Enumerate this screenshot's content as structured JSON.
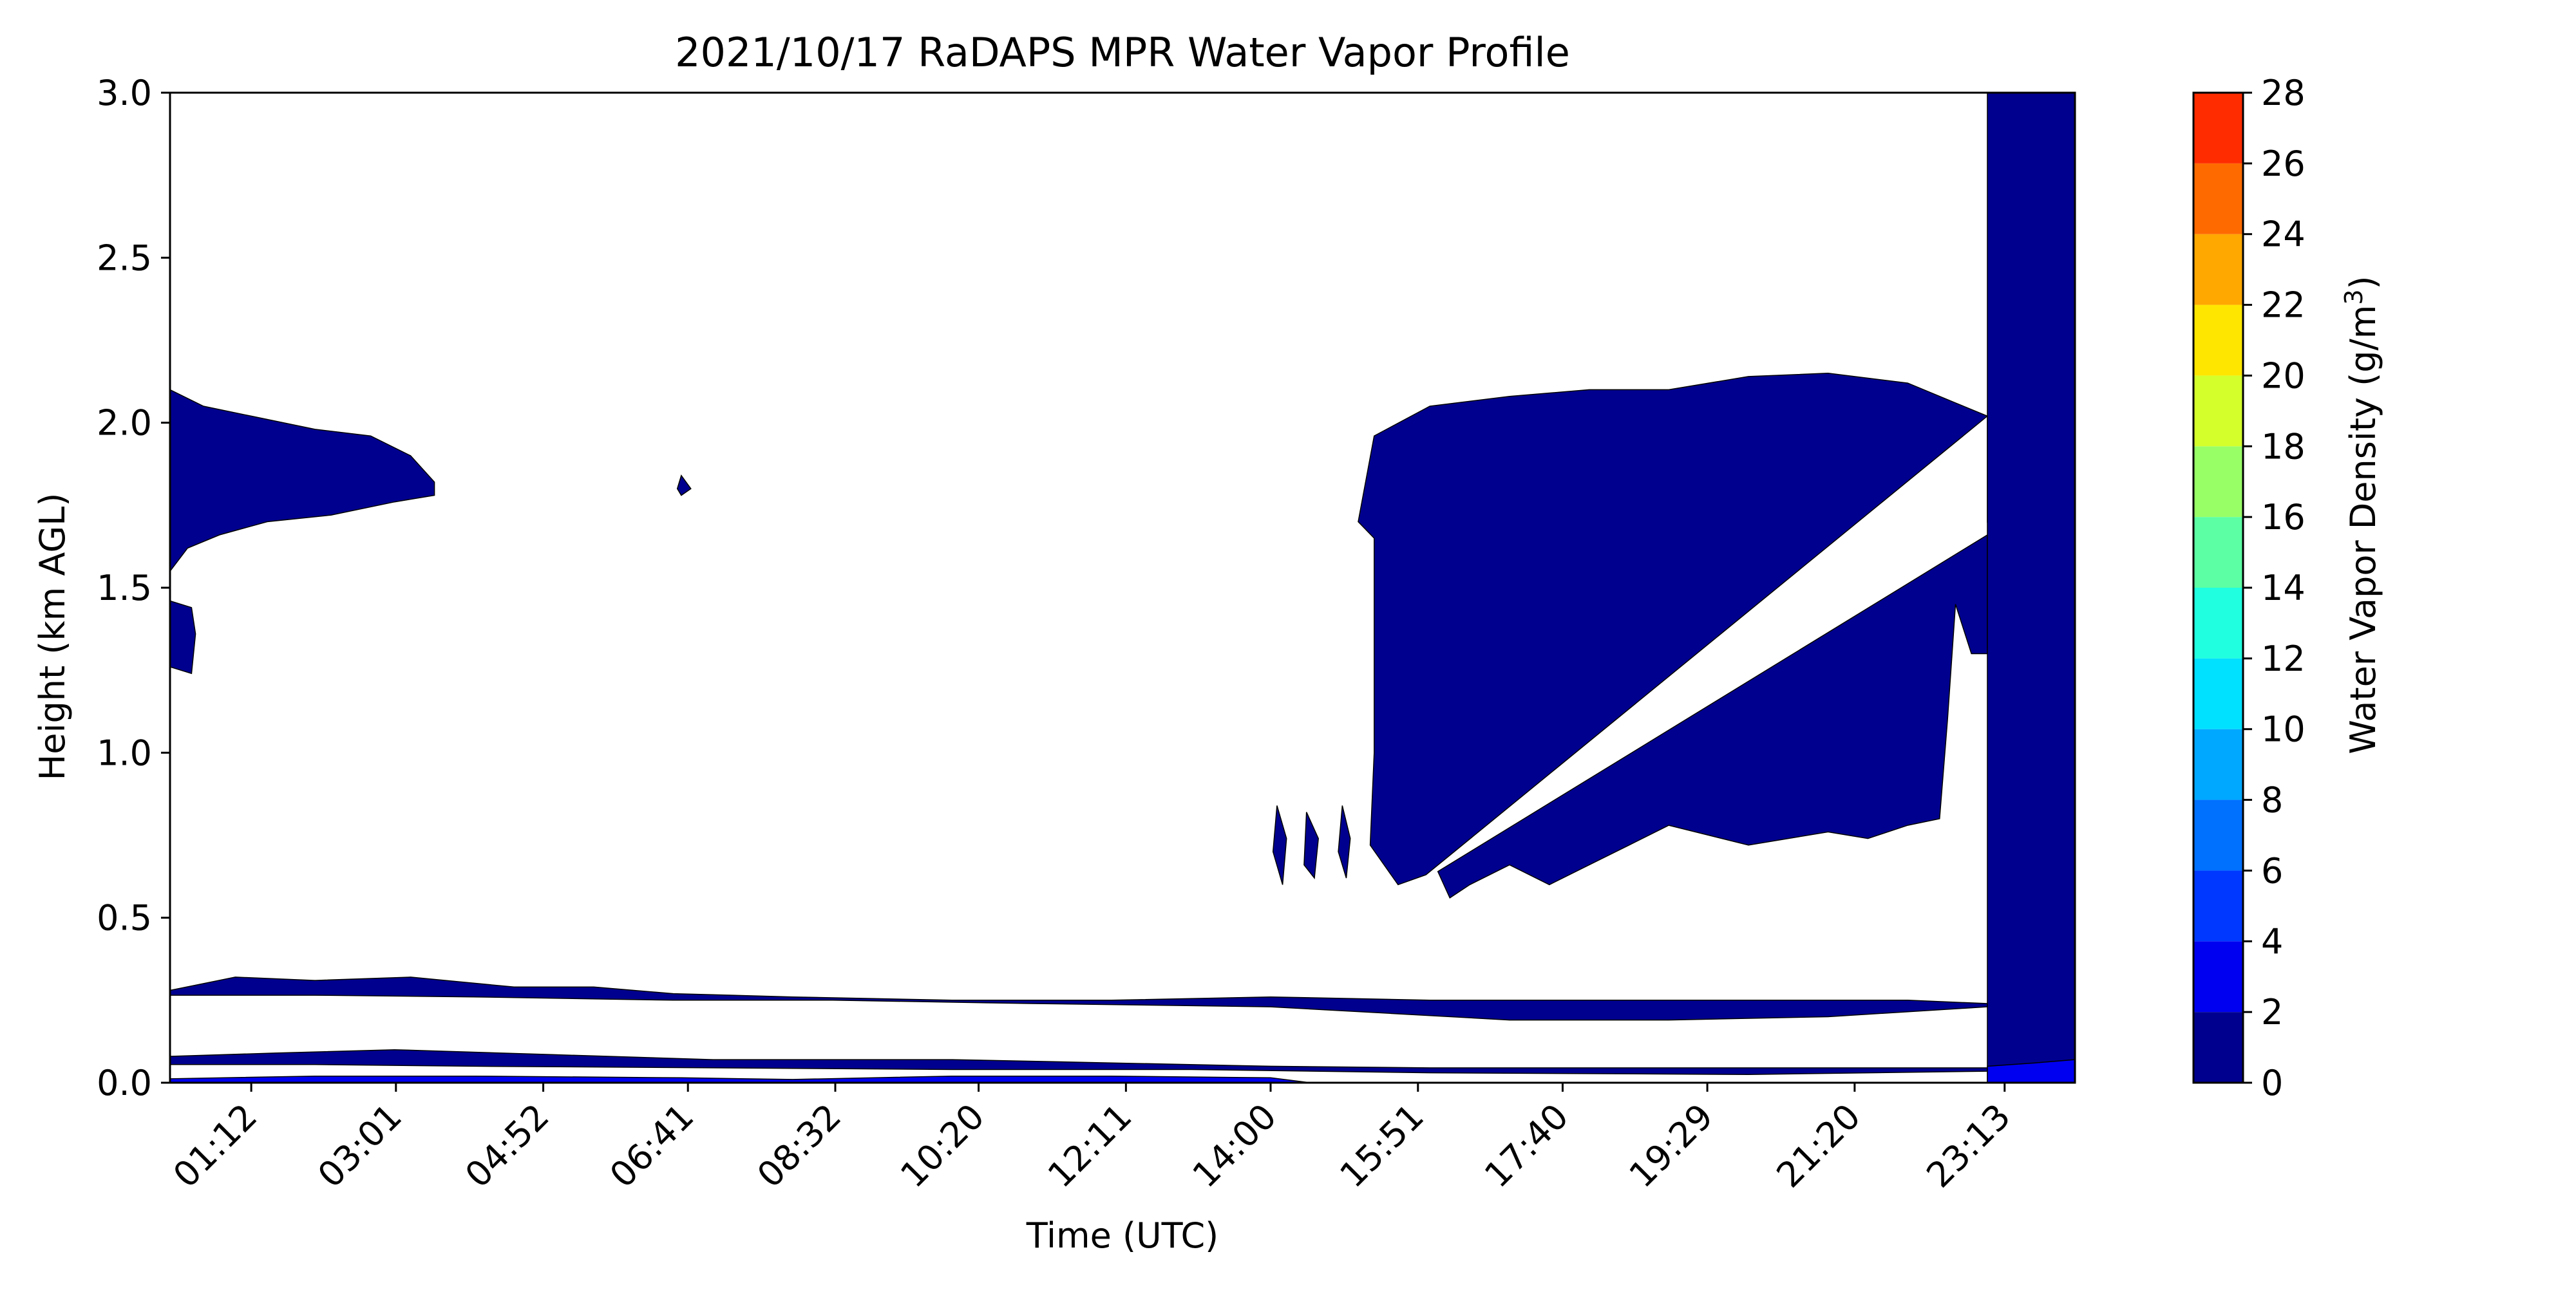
{
  "chart_data": {
    "type": "heatmap",
    "title": "2021/10/17 RaDAPS MPR Water Vapor Profile",
    "xlabel": "Time (UTC)",
    "ylabel": "Height (km AGL)",
    "x_ticks": [
      "01:12",
      "03:01",
      "04:52",
      "06:41",
      "08:32",
      "10:20",
      "12:11",
      "14:00",
      "15:51",
      "17:40",
      "19:29",
      "21:20",
      "23:13"
    ],
    "x_tick_hours": [
      1.2,
      3.0167,
      4.8667,
      6.6833,
      8.5333,
      10.3333,
      12.1833,
      14.0,
      15.85,
      17.6667,
      19.4833,
      21.3333,
      23.2167
    ],
    "xlim_hours": [
      0.18,
      24.1
    ],
    "y_ticks": [
      "0.0",
      "0.5",
      "1.0",
      "1.5",
      "2.0",
      "2.5",
      "3.0"
    ],
    "ylim": [
      0,
      3.0
    ],
    "colorbar": {
      "label": "Water Vapor Density",
      "unit": "(g/m",
      "unit_superscript": "3",
      "unit_close": ")",
      "levels": [
        0,
        2,
        4,
        6,
        8,
        10,
        12,
        14,
        16,
        18,
        20,
        22,
        24,
        26,
        28
      ],
      "tick_labels": [
        "0",
        "2",
        "4",
        "6",
        "8",
        "10",
        "12",
        "14",
        "16",
        "18",
        "20",
        "22",
        "24",
        "26",
        "28"
      ],
      "colors": [
        "#00008f",
        "#0000f0",
        "#0038ff",
        "#0070ff",
        "#00a8ff",
        "#00e0ff",
        "#20ffdf",
        "#5cffa3",
        "#98ff67",
        "#d4ff2b",
        "#ffe600",
        "#ffa800",
        "#ff6a00",
        "#ff2c00",
        "#ad0000"
      ]
    },
    "regions": [
      {
        "name": "upper-layer-early",
        "level_range": [
          0,
          2
        ],
        "polygon": [
          [
            0.18,
            2.1
          ],
          [
            0.6,
            2.05
          ],
          [
            1.2,
            2.02
          ],
          [
            2.0,
            1.98
          ],
          [
            2.7,
            1.96
          ],
          [
            3.2,
            1.9
          ],
          [
            3.5,
            1.82
          ],
          [
            3.5,
            1.78
          ],
          [
            3.0,
            1.76
          ],
          [
            2.2,
            1.72
          ],
          [
            1.4,
            1.7
          ],
          [
            0.8,
            1.66
          ],
          [
            0.4,
            1.62
          ],
          [
            0.18,
            1.55
          ]
        ]
      },
      {
        "name": "small-blob-early",
        "level_range": [
          0,
          2
        ],
        "polygon": [
          [
            0.18,
            1.46
          ],
          [
            0.45,
            1.44
          ],
          [
            0.5,
            1.36
          ],
          [
            0.45,
            1.24
          ],
          [
            0.18,
            1.26
          ]
        ]
      },
      {
        "name": "speck",
        "level_range": [
          0,
          2
        ],
        "polygon": [
          [
            6.6,
            1.84
          ],
          [
            6.72,
            1.8
          ],
          [
            6.6,
            1.78
          ],
          [
            6.55,
            1.8
          ]
        ]
      },
      {
        "name": "large-region-afternoon",
        "level_range": [
          0,
          2
        ],
        "polygon": [
          [
            15.1,
            1.7
          ],
          [
            15.3,
            1.96
          ],
          [
            16.0,
            2.05
          ],
          [
            17.0,
            2.08
          ],
          [
            18.0,
            2.1
          ],
          [
            19.0,
            2.1
          ],
          [
            20.0,
            2.14
          ],
          [
            21.0,
            2.15
          ],
          [
            22.0,
            2.12
          ],
          [
            22.6,
            2.06
          ],
          [
            23.0,
            2.02
          ],
          [
            15.95,
            0.63
          ],
          [
            15.6,
            0.6
          ],
          [
            15.25,
            0.72
          ],
          [
            15.3,
            1.0
          ],
          [
            15.3,
            1.3
          ],
          [
            15.3,
            1.65
          ]
        ]
      },
      {
        "name": "lower-wedge-afternoon",
        "level_range": [
          0,
          2
        ],
        "polygon": [
          [
            16.1,
            0.64
          ],
          [
            23.0,
            1.66
          ],
          [
            23.0,
            1.3
          ],
          [
            22.8,
            1.3
          ],
          [
            22.6,
            1.45
          ],
          [
            22.5,
            1.1
          ],
          [
            22.4,
            0.8
          ],
          [
            22.0,
            0.78
          ],
          [
            21.5,
            0.74
          ],
          [
            21.0,
            0.76
          ],
          [
            20.5,
            0.74
          ],
          [
            20.0,
            0.72
          ],
          [
            19.5,
            0.75
          ],
          [
            19.0,
            0.78
          ],
          [
            18.5,
            0.72
          ],
          [
            18.0,
            0.66
          ],
          [
            17.5,
            0.6
          ],
          [
            17.0,
            0.66
          ],
          [
            16.5,
            0.6
          ],
          [
            16.25,
            0.56
          ]
        ]
      },
      {
        "name": "blob-1",
        "level_range": [
          0,
          2
        ],
        "polygon": [
          [
            14.45,
            0.82
          ],
          [
            14.6,
            0.74
          ],
          [
            14.55,
            0.62
          ],
          [
            14.42,
            0.66
          ]
        ]
      },
      {
        "name": "blob-2",
        "level_range": [
          0,
          2
        ],
        "polygon": [
          [
            14.9,
            0.84
          ],
          [
            15.0,
            0.74
          ],
          [
            14.95,
            0.62
          ],
          [
            14.85,
            0.7
          ]
        ]
      },
      {
        "name": "blob-3",
        "level_range": [
          0,
          2
        ],
        "polygon": [
          [
            14.08,
            0.84
          ],
          [
            14.2,
            0.74
          ],
          [
            14.15,
            0.6
          ],
          [
            14.03,
            0.7
          ]
        ]
      },
      {
        "name": "upper-tail-right",
        "level_range": [
          0,
          2
        ],
        "polygon": [
          [
            23.0,
            2.02
          ],
          [
            23.5,
            1.8
          ],
          [
            23.0,
            1.7
          ]
        ]
      },
      {
        "name": "band-upper",
        "level_range": [
          0,
          2
        ],
        "polygon": [
          [
            0.18,
            0.28
          ],
          [
            1.0,
            0.32
          ],
          [
            2.0,
            0.31
          ],
          [
            3.2,
            0.32
          ],
          [
            4.5,
            0.29
          ],
          [
            5.5,
            0.29
          ],
          [
            6.5,
            0.27
          ],
          [
            8.0,
            0.26
          ],
          [
            10.0,
            0.25
          ],
          [
            12.0,
            0.25
          ],
          [
            14.0,
            0.26
          ],
          [
            16.0,
            0.25
          ],
          [
            18.0,
            0.25
          ],
          [
            20.0,
            0.25
          ],
          [
            22.0,
            0.25
          ],
          [
            23.0,
            0.24
          ],
          [
            23.0,
            0.23
          ],
          [
            21.0,
            0.2
          ],
          [
            19.0,
            0.19
          ],
          [
            17.0,
            0.19
          ],
          [
            15.5,
            0.21
          ],
          [
            14.0,
            0.23
          ],
          [
            11.0,
            0.24
          ],
          [
            8.5,
            0.25
          ],
          [
            6.5,
            0.25
          ],
          [
            4.0,
            0.26
          ],
          [
            2.0,
            0.265
          ],
          [
            0.18,
            0.265
          ]
        ]
      },
      {
        "name": "band-lower",
        "level_range": [
          0,
          2
        ],
        "polygon": [
          [
            0.18,
            0.08
          ],
          [
            1.5,
            0.09
          ],
          [
            3.0,
            0.1
          ],
          [
            5.0,
            0.085
          ],
          [
            7.0,
            0.07
          ],
          [
            10.0,
            0.07
          ],
          [
            12.0,
            0.06
          ],
          [
            14.0,
            0.05
          ],
          [
            16.0,
            0.045
          ],
          [
            23.0,
            0.045
          ],
          [
            23.0,
            0.035
          ],
          [
            20.0,
            0.025
          ],
          [
            16.0,
            0.03
          ],
          [
            13.0,
            0.04
          ],
          [
            10.0,
            0.04
          ],
          [
            7.0,
            0.045
          ],
          [
            4.0,
            0.05
          ],
          [
            2.0,
            0.055
          ],
          [
            0.18,
            0.055
          ]
        ]
      },
      {
        "name": "band-surface",
        "level_range": [
          2,
          6
        ],
        "polygon": [
          [
            0.18,
            0.0
          ],
          [
            0.18,
            0.012
          ],
          [
            2.0,
            0.02
          ],
          [
            4.0,
            0.02
          ],
          [
            6.6,
            0.015
          ],
          [
            8.0,
            0.01
          ],
          [
            10.0,
            0.02
          ],
          [
            12.0,
            0.02
          ],
          [
            14.0,
            0.015
          ],
          [
            14.5,
            0.0
          ]
        ]
      },
      {
        "name": "right-column",
        "level_range": [
          0,
          2
        ],
        "polygon": [
          [
            23.0,
            3.0
          ],
          [
            24.1,
            3.0
          ],
          [
            24.1,
            0.0
          ],
          [
            23.0,
            0.0
          ]
        ]
      },
      {
        "name": "right-column-surface",
        "level_range": [
          2,
          4
        ],
        "polygon": [
          [
            23.0,
            0.0
          ],
          [
            24.1,
            0.0
          ],
          [
            24.1,
            0.07
          ],
          [
            23.6,
            0.06
          ],
          [
            23.0,
            0.05
          ]
        ]
      }
    ]
  }
}
